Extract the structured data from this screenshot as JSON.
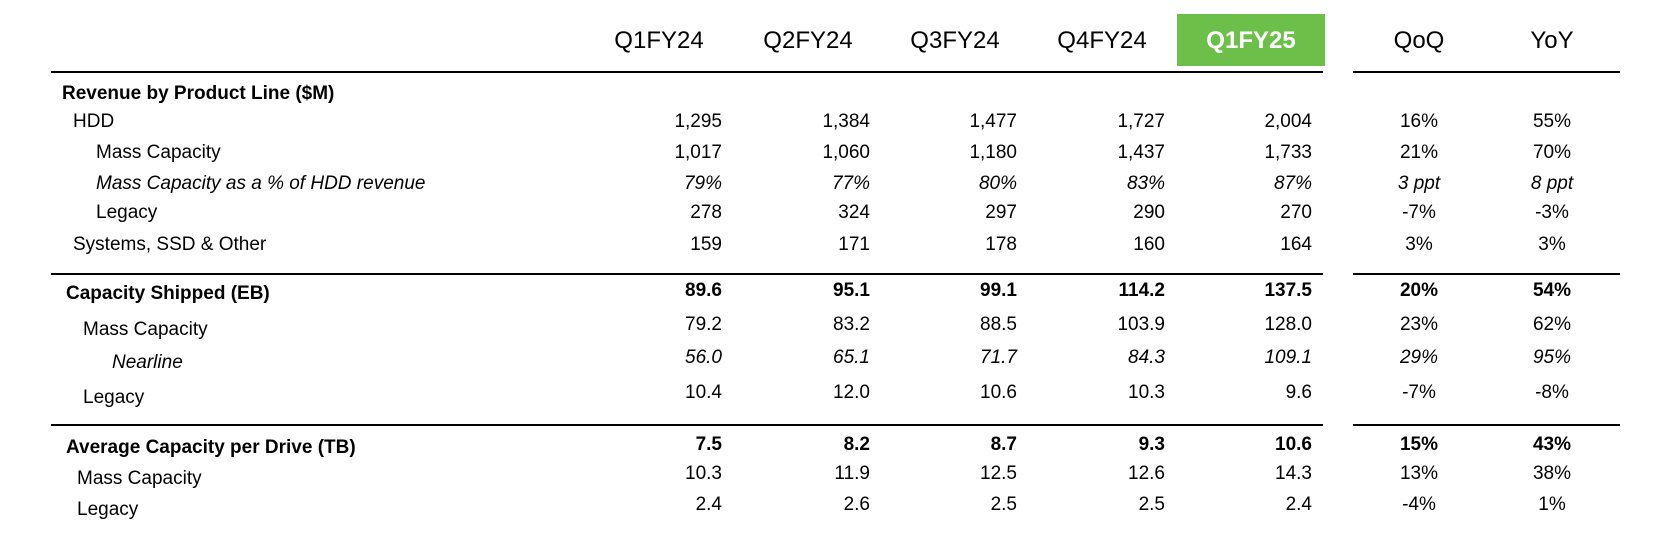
{
  "header": {
    "columns": [
      "Q1FY24",
      "Q2FY24",
      "Q3FY24",
      "Q4FY24",
      "Q1FY25",
      "QoQ",
      "YoY"
    ]
  },
  "sections": [
    {
      "title": "Revenue by Product Line ($M)",
      "rows": [
        {
          "label": "HDD",
          "values": [
            "1,295",
            "1,384",
            "1,477",
            "1,727",
            "2,004",
            "16%",
            "55%"
          ]
        },
        {
          "label": "Mass Capacity",
          "values": [
            "1,017",
            "1,060",
            "1,180",
            "1,437",
            "1,733",
            "21%",
            "70%"
          ]
        },
        {
          "label": "Mass Capacity as a % of HDD revenue",
          "values": [
            "79%",
            "77%",
            "80%",
            "83%",
            "87%",
            "3 ppt",
            "8 ppt"
          ]
        },
        {
          "label": "Legacy",
          "values": [
            "278",
            "324",
            "297",
            "290",
            "270",
            "-7%",
            "-3%"
          ]
        },
        {
          "label": "Systems, SSD & Other",
          "values": [
            "159",
            "171",
            "178",
            "160",
            "164",
            "3%",
            "3%"
          ]
        }
      ]
    },
    {
      "title": "Capacity Shipped (EB)",
      "values": [
        "89.6",
        "95.1",
        "99.1",
        "114.2",
        "137.5",
        "20%",
        "54%"
      ],
      "rows": [
        {
          "label": "Mass Capacity",
          "values": [
            "79.2",
            "83.2",
            "88.5",
            "103.9",
            "128.0",
            "23%",
            "62%"
          ]
        },
        {
          "label": "Nearline",
          "values": [
            "56.0",
            "65.1",
            "71.7",
            "84.3",
            "109.1",
            "29%",
            "95%"
          ]
        },
        {
          "label": "Legacy",
          "values": [
            "10.4",
            "12.0",
            "10.6",
            "10.3",
            "9.6",
            "-7%",
            "-8%"
          ]
        }
      ]
    },
    {
      "title": "Average Capacity per Drive (TB)",
      "values": [
        "7.5",
        "8.2",
        "8.7",
        "9.3",
        "10.6",
        "15%",
        "43%"
      ],
      "rows": [
        {
          "label": "Mass Capacity",
          "values": [
            "10.3",
            "11.9",
            "12.5",
            "12.6",
            "14.3",
            "13%",
            "38%"
          ]
        },
        {
          "label": "Legacy",
          "values": [
            "2.4",
            "2.6",
            "2.5",
            "2.5",
            "2.4",
            "-4%",
            "1%"
          ]
        }
      ]
    }
  ]
}
